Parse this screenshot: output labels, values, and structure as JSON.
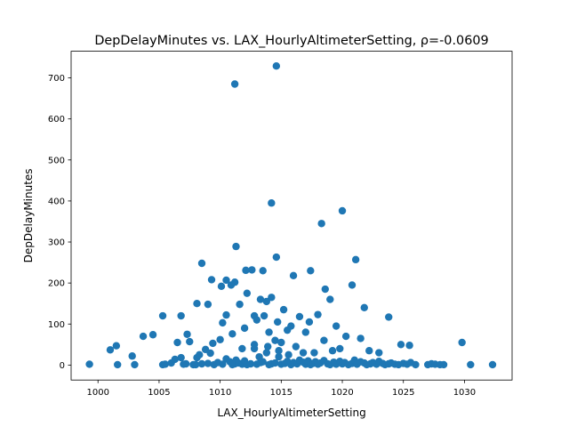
{
  "chart_data": {
    "type": "scatter",
    "title": "DepDelayMinutes vs. LAX_HourlyAltimeterSetting, ρ=-0.0609",
    "xlabel": "LAX_HourlyAltimeterSetting",
    "ylabel": "DepDelayMinutes",
    "xlim": [
      997.8,
      1033.9
    ],
    "ylim": [
      -36.5,
      765
    ],
    "x_ticks": [
      1000,
      1005,
      1010,
      1015,
      1020,
      1025,
      1030
    ],
    "y_ticks": [
      0,
      100,
      200,
      300,
      400,
      500,
      600,
      700
    ],
    "marker_color": "#1f77b4",
    "grid": false,
    "x": [
      999.3,
      1001.0,
      1001.5,
      1001.6,
      1002.8,
      1003.0,
      1003.7,
      1004.5,
      1005.3,
      1005.5,
      1006.0,
      1006.3,
      1006.5,
      1006.8,
      1007.0,
      1007.2,
      1007.5,
      1007.8,
      1008.0,
      1008.1,
      1008.3,
      1008.5,
      1008.8,
      1009.0,
      1009.2,
      1009.4,
      1009.5,
      1009.8,
      1010.0,
      1010.2,
      1010.5,
      1010.8,
      1011.0,
      1011.2,
      1011.3,
      1011.5,
      1011.8,
      1012.0,
      1012.2,
      1012.5,
      1012.8,
      1013.0,
      1013.3,
      1013.5,
      1013.8,
      1014.0,
      1014.2,
      1014.5,
      1014.8,
      1015.0,
      1015.3,
      1015.5,
      1015.8,
      1016.0,
      1016.3,
      1016.5,
      1016.8,
      1017.0,
      1017.2,
      1017.4,
      1017.6,
      1017.8,
      1018.0,
      1018.2,
      1018.5,
      1018.8,
      1019.0,
      1019.3,
      1019.5,
      1019.8,
      1020.0,
      1020.2,
      1020.5,
      1020.8,
      1021.0,
      1021.2,
      1021.5,
      1021.8,
      1022.0,
      1022.3,
      1022.5,
      1022.8,
      1023.0,
      1023.3,
      1023.5,
      1023.8,
      1024.0,
      1024.3,
      1024.6,
      1025.0,
      1025.3,
      1025.6,
      1026.0,
      1027.0,
      1027.3,
      1027.6,
      1028.0,
      1028.3,
      1029.8,
      1030.5,
      1032.3,
      1011.2,
      1014.6,
      1014.2,
      1020.0,
      1018.3,
      1011.3,
      1014.6,
      1021.1,
      1013.5,
      1017.4,
      1016.0,
      1008.5,
      1012.6,
      1012.1,
      1010.5,
      1011.2,
      1009.3,
      1010.1,
      1012.2,
      1010.9,
      1018.6,
      1011.6,
      1012.8,
      1013.3,
      1013.8,
      1014.2,
      1015.2,
      1013.6,
      1014.7,
      1015.8,
      1019.0,
      1020.8,
      1021.8,
      1023.8,
      1009.0,
      1010.5,
      1013.0,
      1016.5,
      1017.3,
      1018.0,
      1019.5,
      1010.2,
      1005.3,
      1006.8,
      1008.1,
      1007.3,
      1011.0,
      1012.0,
      1014.0,
      1015.5,
      1017.0,
      1018.5,
      1020.3,
      1021.5,
      1014.5,
      1012.8,
      1015.0,
      1016.2,
      1011.8,
      1013.9,
      1014.8,
      1016.8,
      1019.8,
      1022.2,
      1023.0,
      1024.8,
      1025.5,
      1013.2,
      1015.6,
      1017.7,
      1019.2
    ],
    "y": [
      2,
      37,
      47,
      1,
      22,
      1,
      70,
      74,
      1,
      2,
      5,
      14,
      55,
      18,
      2,
      3,
      57,
      1,
      1,
      18,
      25,
      3,
      38,
      4,
      29,
      53,
      1,
      6,
      62,
      2,
      15,
      8,
      1,
      3,
      12,
      5,
      2,
      10,
      1,
      3,
      40,
      2,
      6,
      8,
      30,
      1,
      3,
      5,
      20,
      2,
      4,
      9,
      1,
      6,
      3,
      12,
      7,
      2,
      10,
      1,
      4,
      8,
      2,
      5,
      11,
      3,
      1,
      7,
      2,
      9,
      3,
      6,
      1,
      4,
      12,
      2,
      8,
      5,
      1,
      3,
      6,
      2,
      9,
      4,
      1,
      3,
      5,
      2,
      1,
      4,
      2,
      6,
      1,
      1,
      3,
      2,
      1,
      1,
      55,
      1,
      1,
      685,
      729,
      395,
      376,
      345,
      289,
      263,
      257,
      230,
      230,
      218,
      248,
      232,
      231,
      207,
      202,
      208,
      192,
      175,
      195,
      185,
      148,
      120,
      160,
      155,
      165,
      135,
      120,
      105,
      95,
      160,
      195,
      140,
      117,
      148,
      122,
      110,
      118,
      105,
      123,
      95,
      103,
      120,
      120,
      150,
      75,
      76,
      90,
      80,
      85,
      80,
      60,
      70,
      65,
      60,
      50,
      55,
      45,
      40,
      45,
      35,
      30,
      40,
      35,
      30,
      50,
      48,
      20,
      25,
      30,
      35
    ]
  }
}
